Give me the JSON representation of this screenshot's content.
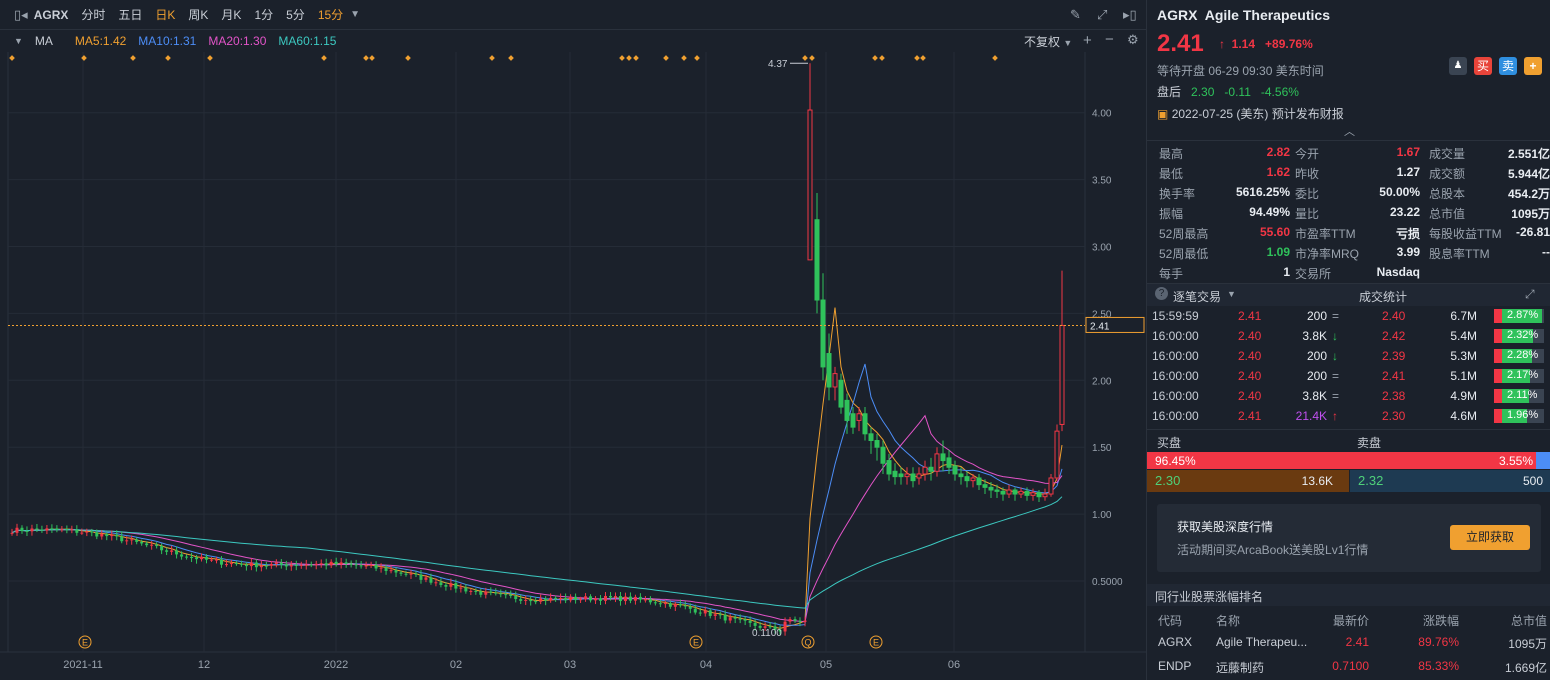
{
  "toolbar": {
    "symbol": "AGRX",
    "timeframes": [
      "分时",
      "五日",
      "日K",
      "周K",
      "月K",
      "1分",
      "5分",
      "15分"
    ],
    "active_timeframe": "日K",
    "dropdown_timeframe": "15分"
  },
  "indicators": {
    "name": "MA",
    "ma5": "MA5:1.42",
    "ma10": "MA10:1.31",
    "ma20": "MA20:1.30",
    "ma60": "MA60:1.15",
    "adjust": "不复权"
  },
  "colors": {
    "ma5": "#f0a030",
    "ma10": "#4c8df6",
    "ma20": "#e254c8",
    "ma60": "#3cc8c0",
    "up": "#f23645",
    "down": "#2fc25b"
  },
  "chart_data": {
    "type": "candlestick",
    "y_ticks": [
      "4.00",
      "3.50",
      "3.00",
      "2.50",
      "2.00",
      "1.50",
      "1.00",
      "0.5000"
    ],
    "x_ticks": [
      "2021-11",
      "12",
      "2022",
      "02",
      "03",
      "04",
      "05",
      "06"
    ],
    "price_line": "2.41",
    "high_label": "4.37",
    "low_label": "0.1100",
    "event_markers": [
      "E",
      "E",
      "Q",
      "E"
    ]
  },
  "quote": {
    "symbol": "AGRX",
    "name": "Agile Therapeutics",
    "price": "2.41",
    "arrow": "↑",
    "change": "1.14",
    "change_pct": "+89.76%",
    "status": "等待开盘 06-29 09:30 美东时间",
    "after_label": "盘后",
    "after_price": "2.30",
    "after_change": "-0.11",
    "after_pct": "-4.56%",
    "earnings": "2022-07-25 (美东) 预计发布财报",
    "buy_btn": "买",
    "sell_btn": "卖",
    "add_btn": "+"
  },
  "stats": [
    [
      "最高",
      "2.82",
      "今开",
      "1.67",
      "成交量",
      "2.551亿"
    ],
    [
      "最低",
      "1.62",
      "昨收",
      "1.27",
      "成交额",
      "5.944亿"
    ],
    [
      "换手率",
      "5616.25%",
      "委比",
      "50.00%",
      "总股本",
      "454.2万"
    ],
    [
      "振幅",
      "94.49%",
      "量比",
      "23.22",
      "总市值",
      "1095万"
    ],
    [
      "52周最高",
      "55.60",
      "市盈率TTM",
      "亏损",
      "每股收益TTM",
      "-26.81"
    ],
    [
      "52周最低",
      "1.09",
      "市净率MRQ",
      "3.99",
      "股息率TTM",
      "--"
    ],
    [
      "每手",
      "1",
      "交易所",
      "Nasdaq",
      "",
      ""
    ]
  ],
  "ticks_header": {
    "left": "逐笔交易",
    "right": "成交统计"
  },
  "ticks": [
    {
      "time": "15:59:59",
      "price": "2.41",
      "vol": "200",
      "dir": "=",
      "p2": "2.40",
      "v2": "6.7M",
      "pct": "2.87%"
    },
    {
      "time": "16:00:00",
      "price": "2.40",
      "vol": "3.8K",
      "dir": "↓",
      "p2": "2.42",
      "v2": "5.4M",
      "pct": "2.32%"
    },
    {
      "time": "16:00:00",
      "price": "2.40",
      "vol": "200",
      "dir": "↓",
      "p2": "2.39",
      "v2": "5.3M",
      "pct": "2.28%"
    },
    {
      "time": "16:00:00",
      "price": "2.40",
      "vol": "200",
      "dir": "=",
      "p2": "2.41",
      "v2": "5.1M",
      "pct": "2.17%"
    },
    {
      "time": "16:00:00",
      "price": "2.40",
      "vol": "3.8K",
      "dir": "=",
      "p2": "2.38",
      "v2": "4.9M",
      "pct": "2.11%"
    },
    {
      "time": "16:00:00",
      "price": "2.41",
      "vol": "21.4K",
      "dir": "↑",
      "p2": "2.30",
      "v2": "4.6M",
      "pct": "1.96%"
    }
  ],
  "book": {
    "buy_label": "买盘",
    "sell_label": "卖盘",
    "buy_pct": "96.45%",
    "sell_pct": "3.55%",
    "bid": "2.30",
    "bid_size": "13.6K",
    "ask": "2.32",
    "ask_size": "500"
  },
  "promo": {
    "title": "获取美股深度行情",
    "subtitle": "活动期间买ArcaBook送美股Lv1行情",
    "button": "立即获取"
  },
  "ranking": {
    "title": "同行业股票涨幅排名",
    "headers": [
      "代码",
      "名称",
      "最新价",
      "涨跌幅",
      "总市值"
    ],
    "rows": [
      [
        "AGRX",
        "Agile Therapeu...",
        "2.41",
        "89.76%",
        "1095万"
      ],
      [
        "ENDP",
        "远藤制药",
        "0.7100",
        "85.33%",
        "1.669亿"
      ]
    ]
  }
}
